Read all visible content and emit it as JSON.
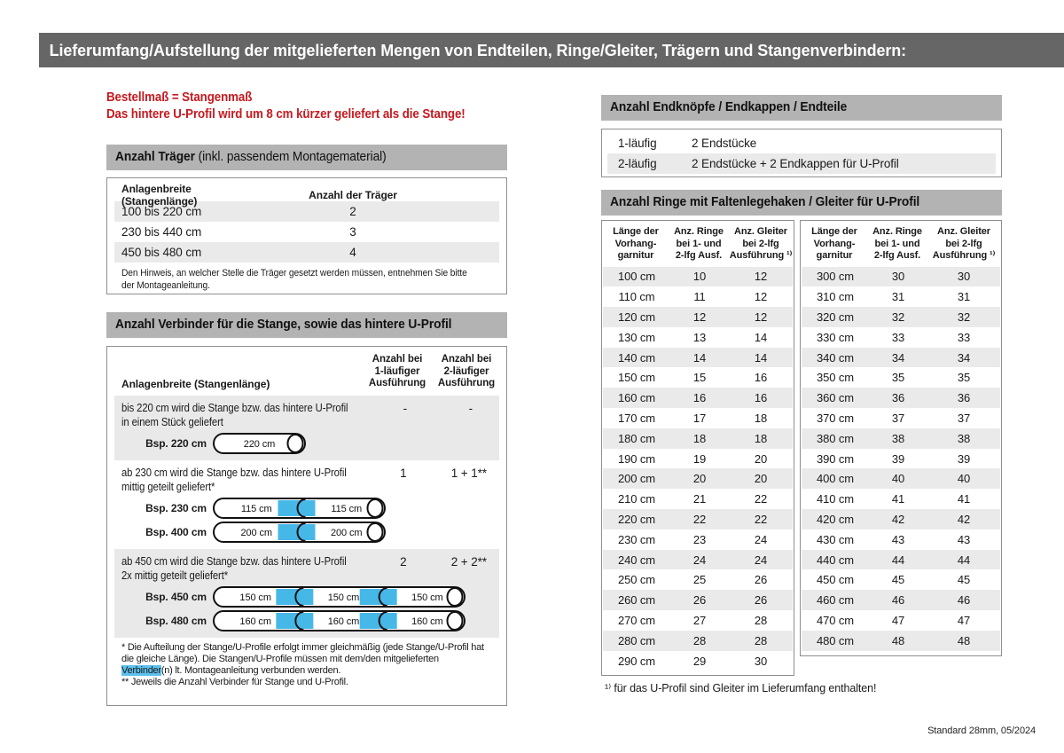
{
  "page": {
    "title": "Lieferumfang/Aufstellung der mitgelieferten Mengen von Endteilen, Ringe/Gleiter, Trägern und Stangenverbindern:",
    "footer": "Standard 28mm, 05/2024"
  },
  "colors": {
    "titlebar_bg": "#666666",
    "section_header_bg": "#b3b3b3",
    "row_stripe": "#eaeaea",
    "accent_red": "#c6191f",
    "connector_blue": "#45b8e8",
    "highlight_blue": "#5cc0ec"
  },
  "left": {
    "notice_line1": "Bestellmaß = Stangenmaß",
    "notice_line2": "Das hintere U-Profil wird um 8 cm kürzer geliefert als die Stange!",
    "traeger": {
      "header_bold": "Anzahl Träger",
      "header_rest": " (inkl. passendem Montagematerial)",
      "col1": "Anlagenbreite (Stangenlänge)",
      "col2": "Anzahl der Träger",
      "rows": [
        [
          "100 bis 220 cm",
          "2"
        ],
        [
          "230 bis 440 cm",
          "3"
        ],
        [
          "450 bis 480 cm",
          "4"
        ]
      ],
      "note": "Den Hinweis, an welcher Stelle die Träger gesetzt werden müssen, entnehmen Sie bitte\nder Montageanleitung."
    },
    "verbinder": {
      "header": "Anzahl Verbinder für die Stange, sowie das hintere U-Profil",
      "col1": "Anlagenbreite (Stangenlänge)",
      "col2": "Anzahl bei\n1-läufiger\nAusführung",
      "col3": "Anzahl bei\n2-läufiger\nAusführung",
      "blocks": [
        {
          "text": "bis 220 cm wird die Stange bzw. das hintere U-Profil\nin einem Stück geliefert",
          "v1": "-",
          "v2": "-",
          "rods": [
            {
              "label": "Bsp. 220 cm",
              "segments": [
                "220 cm"
              ]
            }
          ]
        },
        {
          "text": "ab 230 cm wird die Stange bzw. das hintere U-Profil\nmittig geteilt geliefert*",
          "v1": "1",
          "v2": "1 + 1**",
          "rods": [
            {
              "label": "Bsp. 230 cm",
              "segments": [
                "115 cm",
                "115 cm"
              ]
            },
            {
              "label": "Bsp. 400 cm",
              "segments": [
                "200 cm",
                "200 cm"
              ]
            }
          ]
        },
        {
          "text": "ab 450 cm wird die Stange bzw. das hintere U-Profil\n2x mittig geteilt geliefert*",
          "v1": "2",
          "v2": "2 + 2**",
          "rods": [
            {
              "label": "Bsp. 450 cm",
              "segments": [
                "150 cm",
                "150 cm",
                "150 cm"
              ]
            },
            {
              "label": "Bsp. 480 cm",
              "segments": [
                "160 cm",
                "160 cm",
                "160 cm"
              ]
            }
          ]
        }
      ],
      "footnote1_pre": "* Die Aufteilung der Stange/U-Profile erfolgt immer gleichmäßig (jede Stange/U-Profil hat die gleiche Länge). Die Stangen/U-Profile müssen mit dem/den mitgelieferten ",
      "footnote1_highlight": "Verbinder",
      "footnote1_post": "(n) lt. Montageanleitung verbunden werden.",
      "footnote2": "** Jeweils die Anzahl Verbinder für Stange und U-Profil."
    }
  },
  "right": {
    "endteile": {
      "header": "Anzahl Endknöpfe / Endkappen / Endteile",
      "rows": [
        [
          "1-läufig",
          "2 Endstücke"
        ],
        [
          "2-läufig",
          "2 Endstücke + 2 Endkappen für U-Profil"
        ]
      ]
    },
    "ringe": {
      "header": "Anzahl Ringe mit Faltenlegehaken / Gleiter für U-Profil",
      "col_headers": [
        "Länge der\nVorhang-\ngarnitur",
        "Anz. Ringe\nbei 1- und\n2-lfg Ausf.",
        "Anz. Gleiter\nbei 2-lfg\nAusführung ¹⁾"
      ],
      "table_left": [
        [
          "100 cm",
          "10",
          "12"
        ],
        [
          "110 cm",
          "11",
          "12"
        ],
        [
          "120 cm",
          "12",
          "12"
        ],
        [
          "130 cm",
          "13",
          "14"
        ],
        [
          "140 cm",
          "14",
          "14"
        ],
        [
          "150 cm",
          "15",
          "16"
        ],
        [
          "160 cm",
          "16",
          "16"
        ],
        [
          "170 cm",
          "17",
          "18"
        ],
        [
          "180 cm",
          "18",
          "18"
        ],
        [
          "190 cm",
          "19",
          "20"
        ],
        [
          "200 cm",
          "20",
          "20"
        ],
        [
          "210 cm",
          "21",
          "22"
        ],
        [
          "220 cm",
          "22",
          "22"
        ],
        [
          "230 cm",
          "23",
          "24"
        ],
        [
          "240 cm",
          "24",
          "24"
        ],
        [
          "250 cm",
          "25",
          "26"
        ],
        [
          "260 cm",
          "26",
          "26"
        ],
        [
          "270 cm",
          "27",
          "28"
        ],
        [
          "280 cm",
          "28",
          "28"
        ],
        [
          "290 cm",
          "29",
          "30"
        ]
      ],
      "table_right": [
        [
          "300 cm",
          "30",
          "30"
        ],
        [
          "310 cm",
          "31",
          "31"
        ],
        [
          "320 cm",
          "32",
          "32"
        ],
        [
          "330 cm",
          "33",
          "33"
        ],
        [
          "340 cm",
          "34",
          "34"
        ],
        [
          "350 cm",
          "35",
          "35"
        ],
        [
          "360 cm",
          "36",
          "36"
        ],
        [
          "370 cm",
          "37",
          "37"
        ],
        [
          "380 cm",
          "38",
          "38"
        ],
        [
          "390 cm",
          "39",
          "39"
        ],
        [
          "400 cm",
          "40",
          "40"
        ],
        [
          "410 cm",
          "41",
          "41"
        ],
        [
          "420 cm",
          "42",
          "42"
        ],
        [
          "430 cm",
          "43",
          "43"
        ],
        [
          "440 cm",
          "44",
          "44"
        ],
        [
          "450 cm",
          "45",
          "45"
        ],
        [
          "460 cm",
          "46",
          "46"
        ],
        [
          "470 cm",
          "47",
          "47"
        ],
        [
          "480 cm",
          "48",
          "48"
        ]
      ],
      "footnote": "¹⁾ für das U-Profil sind Gleiter im Lieferumfang enthalten!"
    }
  }
}
